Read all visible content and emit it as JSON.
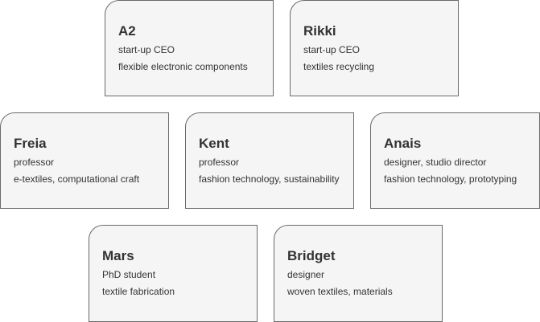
{
  "cards": [
    {
      "name": "A2",
      "role": "start-up CEO",
      "focus": "flexible electronic components"
    },
    {
      "name": "Rikki",
      "role": "start-up CEO",
      "focus": "textiles recycling"
    },
    {
      "name": "Freia",
      "role": "professor",
      "focus": "e-textiles, computational craft"
    },
    {
      "name": "Kent",
      "role": "professor",
      "focus": "fashion technology, sustainability"
    },
    {
      "name": "Anais",
      "role": "designer, studio director",
      "focus": "fashion technology, prototyping"
    },
    {
      "name": "Mars",
      "role": "PhD student",
      "focus": "textile fabrication"
    },
    {
      "name": "Bridget",
      "role": "designer",
      "focus": "woven textiles, materials"
    }
  ]
}
